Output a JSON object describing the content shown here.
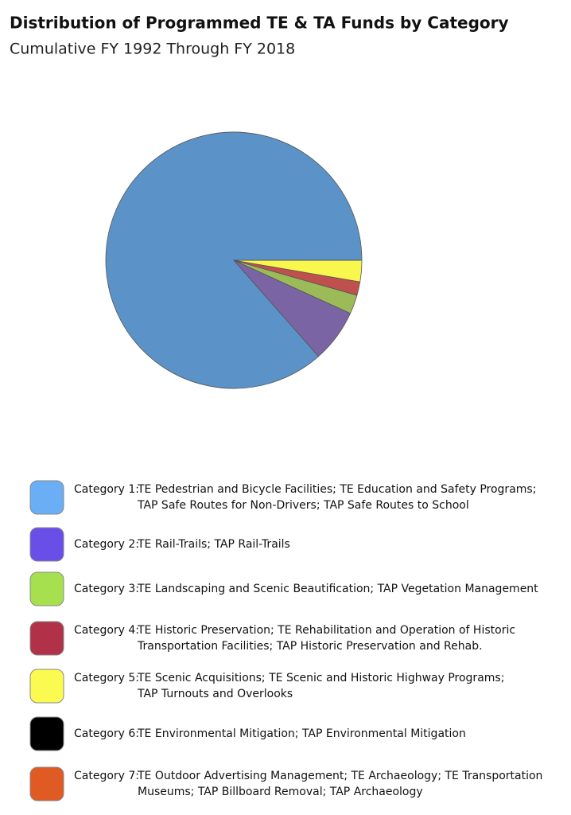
{
  "chart_data": {
    "type": "pie",
    "title": "Distribution of Programmed TE & TA Funds by Category",
    "subtitle": "Cumulative FY 1992 Through FY 2018",
    "categories": [
      {
        "name": "Category 1:",
        "lines": [
          "TE Pedestrian and Bicycle Facilities; TE Education and Safety Programs;",
          "TAP Safe Routes for Non-Drivers; TAP Safe Routes to School"
        ]
      },
      {
        "name": "Category 2:",
        "lines": [
          "TE Rail-Trails; TAP Rail-Trails"
        ]
      },
      {
        "name": "Category 3:",
        "lines": [
          "TE Landscaping and Scenic Beautification; TAP Vegetation Management"
        ]
      },
      {
        "name": "Category 4:",
        "lines": [
          "TE Historic Preservation; TE Rehabilitation and Operation of Historic",
          "Transportation Facilities; TAP Historic Preservation and Rehab."
        ]
      },
      {
        "name": "Category 5:",
        "lines": [
          "TE Scenic Acquisitions; TE Scenic and Historic Highway Programs;",
          "TAP Turnouts and Overlooks"
        ]
      },
      {
        "name": "Category 6:",
        "lines": [
          "TE Environmental Mitigation; TAP Environmental Mitigation"
        ]
      },
      {
        "name": "Category 7:",
        "lines": [
          "TE Outdoor Advertising Management; TE Archaeology; TE Transportation",
          "Museums; TAP Billboard Removal; TAP Archaeology"
        ]
      }
    ],
    "values": [
      86.5,
      6.7,
      2.4,
      1.7,
      2.7,
      0,
      0
    ],
    "colors": [
      "#5b93c9",
      "#7b64a3",
      "#9bbb59",
      "#c0504d",
      "#f9f74e",
      "#000000",
      "#e05a24"
    ],
    "legend_colors": [
      "#6aaef5",
      "#6a4ee8",
      "#a6e04e",
      "#b03148",
      "#fafa50",
      "#000000",
      "#e05a24"
    ]
  }
}
